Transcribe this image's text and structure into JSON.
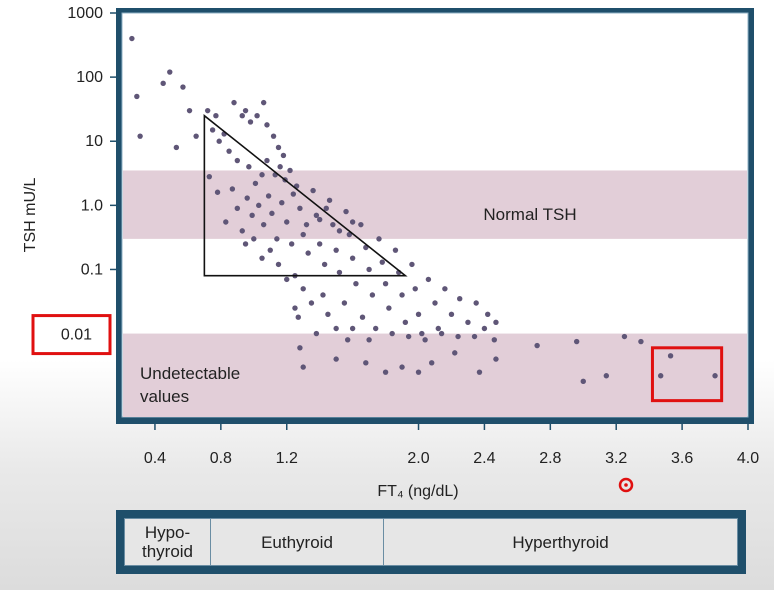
{
  "chart_data": {
    "type": "scatter",
    "xlabel": "FT₄ (ng/dL)",
    "ylabel": "TSH mU/L",
    "x_ticks": [
      "0.4",
      "0.8",
      "1.2",
      "2.0",
      "2.4",
      "2.8",
      "3.2",
      "3.6",
      "4.0"
    ],
    "x_tick_values": [
      0.4,
      0.8,
      1.2,
      2.0,
      2.4,
      2.8,
      3.2,
      3.6,
      4.0
    ],
    "y_ticks": [
      "1000",
      "100",
      "10",
      "1.0",
      "0.1",
      "0.01"
    ],
    "y_tick_values": [
      1000,
      100,
      10,
      1.0,
      0.1,
      0.01
    ],
    "xlim": [
      0.2,
      4.0
    ],
    "ylim": [
      0.0005,
      1000
    ],
    "y_scale": "log",
    "bands": [
      {
        "label": "Normal TSH",
        "y_from": 0.3,
        "y_to": 3.5
      },
      {
        "label": "Undetectable values",
        "y_from": 0.0005,
        "y_to": 0.01
      }
    ],
    "triangle": [
      [
        0.7,
        25
      ],
      [
        0.7,
        0.08
      ],
      [
        1.92,
        0.08
      ]
    ],
    "highlight_box": {
      "x_from": 3.42,
      "x_to": 3.84,
      "y_from": 0.0009,
      "y_to": 0.006
    },
    "points": [
      [
        0.26,
        400
      ],
      [
        0.29,
        50
      ],
      [
        0.31,
        12
      ],
      [
        0.45,
        80
      ],
      [
        0.49,
        120
      ],
      [
        0.53,
        8
      ],
      [
        0.57,
        70
      ],
      [
        0.61,
        30
      ],
      [
        0.65,
        12
      ],
      [
        0.72,
        30
      ],
      [
        0.75,
        15
      ],
      [
        0.77,
        25
      ],
      [
        0.79,
        10
      ],
      [
        0.82,
        13
      ],
      [
        0.85,
        7
      ],
      [
        0.88,
        40
      ],
      [
        0.93,
        25
      ],
      [
        0.95,
        30
      ],
      [
        0.98,
        20
      ],
      [
        1.02,
        25
      ],
      [
        1.06,
        40
      ],
      [
        1.08,
        18
      ],
      [
        1.12,
        12
      ],
      [
        1.15,
        8
      ],
      [
        1.18,
        6
      ],
      [
        1.22,
        3.5
      ],
      [
        0.73,
        2.8
      ],
      [
        0.78,
        1.6
      ],
      [
        0.83,
        0.55
      ],
      [
        0.87,
        1.8
      ],
      [
        0.9,
        0.9
      ],
      [
        0.93,
        0.4
      ],
      [
        0.96,
        1.3
      ],
      [
        0.99,
        0.7
      ],
      [
        1.01,
        2.2
      ],
      [
        1.03,
        1.0
      ],
      [
        1.06,
        0.5
      ],
      [
        1.09,
        1.4
      ],
      [
        1.11,
        0.75
      ],
      [
        1.14,
        0.3
      ],
      [
        1.17,
        1.1
      ],
      [
        1.2,
        0.55
      ],
      [
        1.23,
        0.25
      ],
      [
        1.26,
        2.0
      ],
      [
        1.28,
        0.9
      ],
      [
        1.3,
        0.35
      ],
      [
        1.33,
        0.18
      ],
      [
        1.36,
        1.7
      ],
      [
        1.38,
        0.7
      ],
      [
        1.4,
        0.25
      ],
      [
        1.43,
        0.12
      ],
      [
        1.46,
        1.2
      ],
      [
        1.48,
        0.5
      ],
      [
        1.5,
        0.2
      ],
      [
        1.52,
        0.09
      ],
      [
        1.56,
        0.8
      ],
      [
        1.58,
        0.35
      ],
      [
        1.6,
        0.15
      ],
      [
        1.62,
        0.06
      ],
      [
        1.65,
        0.5
      ],
      [
        1.68,
        0.22
      ],
      [
        1.7,
        0.1
      ],
      [
        1.72,
        0.04
      ],
      [
        1.76,
        0.3
      ],
      [
        1.78,
        0.13
      ],
      [
        1.8,
        0.06
      ],
      [
        1.82,
        0.025
      ],
      [
        1.86,
        0.2
      ],
      [
        1.88,
        0.09
      ],
      [
        1.9,
        0.04
      ],
      [
        1.92,
        0.015
      ],
      [
        1.96,
        0.12
      ],
      [
        1.98,
        0.05
      ],
      [
        2.0,
        0.02
      ],
      [
        2.02,
        0.01
      ],
      [
        2.06,
        0.07
      ],
      [
        2.1,
        0.03
      ],
      [
        2.12,
        0.012
      ],
      [
        2.16,
        0.05
      ],
      [
        2.2,
        0.02
      ],
      [
        2.25,
        0.035
      ],
      [
        2.3,
        0.015
      ],
      [
        2.35,
        0.03
      ],
      [
        2.4,
        0.012
      ],
      [
        2.42,
        0.02
      ],
      [
        2.47,
        0.015
      ],
      [
        1.3,
        0.05
      ],
      [
        1.35,
        0.03
      ],
      [
        1.42,
        0.04
      ],
      [
        1.45,
        0.02
      ],
      [
        1.55,
        0.03
      ],
      [
        1.6,
        0.012
      ],
      [
        1.66,
        0.018
      ],
      [
        1.7,
        0.008
      ],
      [
        1.74,
        0.012
      ],
      [
        1.84,
        0.01
      ],
      [
        1.94,
        0.009
      ],
      [
        2.04,
        0.008
      ],
      [
        2.14,
        0.01
      ],
      [
        2.24,
        0.009
      ],
      [
        2.34,
        0.009
      ],
      [
        2.46,
        0.008
      ],
      [
        2.72,
        0.0065
      ],
      [
        2.96,
        0.0075
      ],
      [
        3.25,
        0.009
      ],
      [
        3.35,
        0.0075
      ],
      [
        1.25,
        0.025
      ],
      [
        1.27,
        0.018
      ],
      [
        1.38,
        0.01
      ],
      [
        1.5,
        0.012
      ],
      [
        1.57,
        0.008
      ],
      [
        1.28,
        0.006
      ],
      [
        1.3,
        0.003
      ],
      [
        1.5,
        0.004
      ],
      [
        1.68,
        0.0035
      ],
      [
        1.8,
        0.0025
      ],
      [
        1.9,
        0.003
      ],
      [
        2.0,
        0.0025
      ],
      [
        2.08,
        0.0035
      ],
      [
        2.22,
        0.005
      ],
      [
        2.37,
        0.0025
      ],
      [
        2.47,
        0.004
      ],
      [
        3.0,
        0.0018
      ],
      [
        3.14,
        0.0022
      ],
      [
        3.47,
        0.0022
      ],
      [
        3.53,
        0.0045
      ],
      [
        3.8,
        0.0022
      ],
      [
        1.15,
        0.12
      ],
      [
        1.2,
        0.07
      ],
      [
        1.25,
        0.08
      ],
      [
        1.1,
        0.2
      ],
      [
        1.0,
        0.3
      ],
      [
        0.95,
        0.25
      ],
      [
        1.05,
        0.15
      ],
      [
        1.32,
        0.5
      ],
      [
        1.4,
        0.6
      ],
      [
        1.44,
        0.9
      ],
      [
        1.52,
        0.4
      ],
      [
        1.6,
        0.55
      ],
      [
        1.24,
        1.5
      ],
      [
        1.19,
        2.5
      ],
      [
        1.13,
        3.0
      ],
      [
        0.9,
        5.0
      ],
      [
        0.97,
        4.0
      ],
      [
        1.05,
        3.0
      ],
      [
        1.08,
        5.0
      ],
      [
        1.16,
        4.0
      ]
    ]
  },
  "labels": {
    "normal_band": "Normal TSH",
    "undetectable_line1": "Undetectable",
    "undetectable_line2": "values",
    "callout_value": "0.01"
  },
  "classification": [
    {
      "line1": "Hypo-",
      "line2": "thyroid"
    },
    {
      "line1": "Euthyroid",
      "line2": ""
    },
    {
      "line1": "Hyperthyroid",
      "line2": ""
    }
  ],
  "colors": {
    "frame": "#1f4f6b",
    "plot_bg": "#ffffff",
    "band": "#e2ced8",
    "dot": "#5f5677",
    "highlight": "#e01010",
    "cursor": "#e01010"
  }
}
